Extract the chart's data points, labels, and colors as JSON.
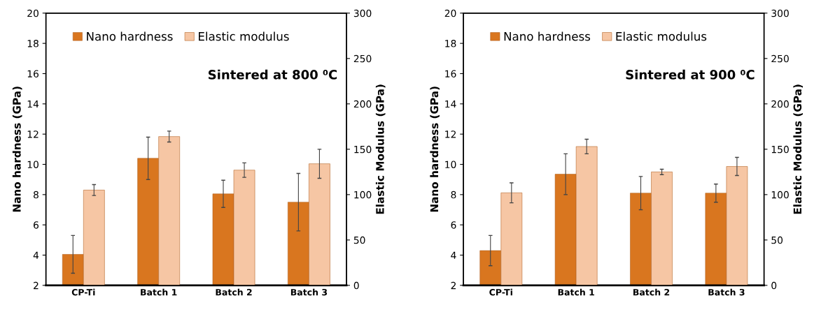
{
  "chart_data": [
    {
      "type": "bar",
      "categories": [
        "CP-Ti",
        "Batch 1",
        "Batch 2",
        "Batch 3"
      ],
      "ylabel": "Nano hardness (GPa)",
      "y2label": "Elastic Modulus (GPa)",
      "annotations": [
        "Sintered at 800 ⁰C"
      ],
      "series": [
        {
          "name": "Nano hardness",
          "color": "#d9761f",
          "values": [
            4.05,
            10.4,
            8.05,
            7.5
          ],
          "errors": [
            1.25,
            1.4,
            0.9,
            1.9
          ]
        },
        {
          "name": "Elastic modulus",
          "color": "#f6c6a4",
          "axis": "y2",
          "values": [
            105,
            164,
            127,
            134
          ],
          "errors": [
            6,
            6,
            8,
            16
          ]
        }
      ],
      "ylim": [
        2,
        20
      ],
      "yticks": [
        2,
        4,
        6,
        8,
        10,
        12,
        14,
        16,
        18,
        20
      ],
      "y2lim": [
        0,
        300
      ],
      "y2ticks": [
        0,
        50,
        100,
        150,
        200,
        250,
        300
      ],
      "legend": "top"
    },
    {
      "type": "bar",
      "categories": [
        "CP-Ti",
        "Batch 1",
        "Batch 2",
        "Batch 3"
      ],
      "ylabel": "Nano hardness (GPa)",
      "y2label": "Elastic Modulus (GPa)",
      "annotations": [
        "Sintered at 900 ⁰C"
      ],
      "series": [
        {
          "name": "Nano hardness",
          "color": "#d9761f",
          "values": [
            4.3,
            9.35,
            8.1,
            8.1
          ],
          "errors": [
            1.0,
            1.35,
            1.1,
            0.6
          ]
        },
        {
          "name": "Elastic modulus",
          "color": "#f6c6a4",
          "axis": "y2",
          "values": [
            102,
            153,
            125,
            131
          ],
          "errors": [
            11,
            8,
            3,
            10
          ]
        }
      ],
      "ylim": [
        2,
        20
      ],
      "yticks": [
        2,
        4,
        6,
        8,
        10,
        12,
        14,
        16,
        18,
        20
      ],
      "y2lim": [
        0,
        300
      ],
      "y2ticks": [
        0,
        50,
        100,
        150,
        200,
        250,
        300
      ],
      "legend": "top"
    }
  ]
}
